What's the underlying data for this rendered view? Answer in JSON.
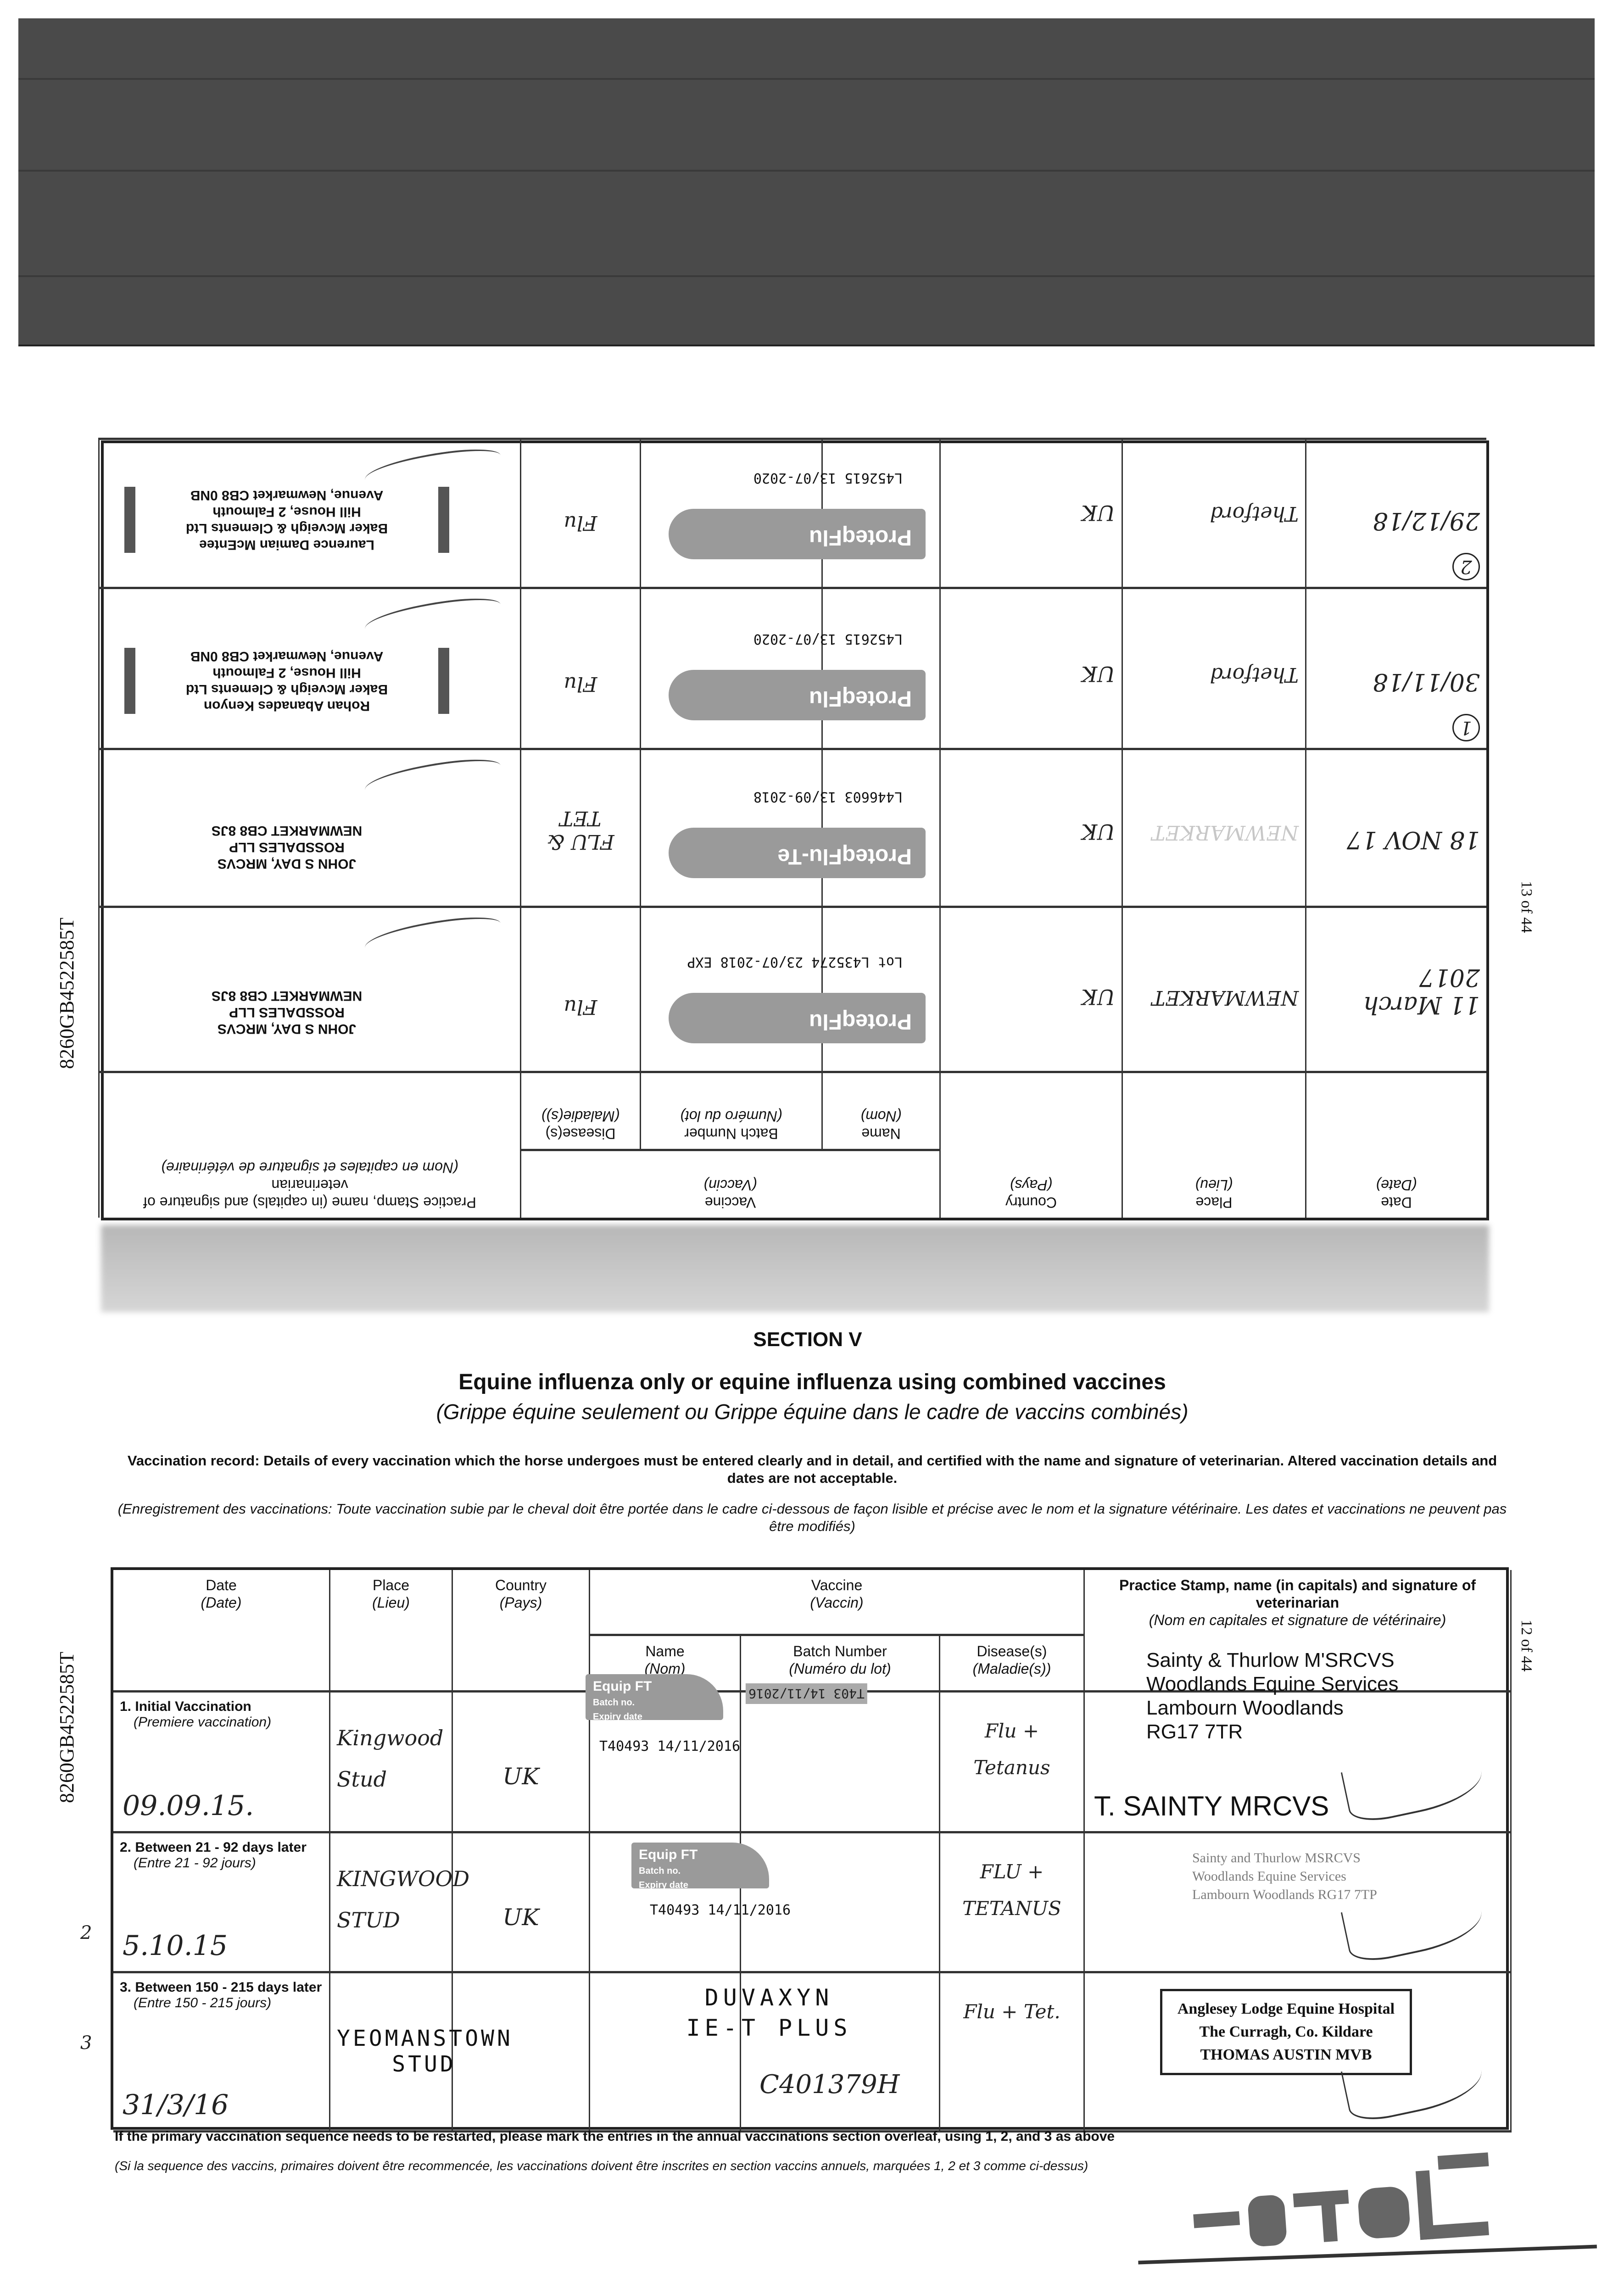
{
  "side_id": "8260GB4522585T",
  "upper": {
    "page": "13 of 44",
    "headers": {
      "date": "Date",
      "date_fr": "(Date)",
      "place": "Place",
      "place_fr": "(Lieu)",
      "country": "Country",
      "country_fr": "(Pays)",
      "vaccine": "Vaccine",
      "vaccine_fr": "(Vaccin)",
      "name": "Name",
      "name_fr": "(Nom)",
      "batch": "Batch Number",
      "batch_fr": "(Numéro du lot)",
      "disease": "Disease(s)",
      "disease_fr": "(Maladie(s))",
      "stamp": "Practice Stamp, name (in capitals) and signature of veterinarian",
      "stamp_fr": "(Nom en capitales et signature de vétérinaire)"
    },
    "rows": [
      {
        "date": "11 March 2017",
        "place": "NEWMARKET",
        "country": "UK",
        "vaccine": "ProteqFlu",
        "batch": "Lot L435274 23/07-2018 EXP",
        "disease": "Flu",
        "stamp": [
          "JOHN S DAY, MRCVS",
          "ROSSDALES LLP",
          "NEWMARKET CB8 8JS"
        ]
      },
      {
        "date": "18 NOV 17",
        "place": "NEWMARKET",
        "country": "UK",
        "vaccine": "ProteqFlu-Te",
        "batch": "L446603 13/09-2018",
        "disease": "FLU & TET",
        "stamp": [
          "JOHN S DAY, MRCVS",
          "ROSSDALES LLP",
          "NEWMARKET CB8 8JS"
        ]
      },
      {
        "mark": "1",
        "date": "30/11/18",
        "place": "Thetford",
        "country": "UK",
        "vaccine": "ProteqFlu",
        "batch": "L452615 13/07-2020",
        "disease": "Flu",
        "stamp": [
          "Rohan Abanades Kenyon",
          "Baker Mcveigh & Clements Ltd",
          "Hill House, 2 Falmouth",
          "Avenue, Newmarket CB8 0NB"
        ]
      },
      {
        "mark": "2",
        "date": "29/12/18",
        "place": "Thetford",
        "country": "UK",
        "vaccine": "ProteqFlu",
        "batch": "L452615 13/07-2020",
        "disease": "Flu",
        "stamp": [
          "Laurence Damian McEntee",
          "Baker Mcveigh & Clements Ltd",
          "Hill House, 2 Falmouth",
          "Avenue, Newmarket CB8 0NB"
        ]
      }
    ]
  },
  "section": {
    "heading": "SECTION V",
    "title": "Equine influenza only or equine influenza using combined vaccines",
    "title_fr": "(Grippe équine seulement ou Grippe équine dans le cadre de vaccins combinés)",
    "instruction": "Vaccination record: Details of every vaccination which the horse undergoes must be entered clearly and in detail, and certified with the name and signature of veterinarian. Altered vaccination details and dates are not acceptable.",
    "instruction_fr": "(Enregistrement des vaccinations: Toute vaccination subie par le cheval doit être portée dans le cadre ci-dessous de façon lisible et précise avec le nom et la signature vétérinaire. Les dates et vaccinations ne peuvent pas être modifiés)"
  },
  "lower": {
    "page": "12 of 44",
    "rows": [
      {
        "label": "1. Initial Vaccination",
        "label_fr": "(Premiere vaccination)",
        "margin": "",
        "date": "09.09.15.",
        "place": "Kingwood Stud",
        "country": "UK",
        "sticker": "Equip FT",
        "batch_no": "Batch no.",
        "expiry": "Expiry date",
        "batch": "T40493 14/11/2016",
        "batch2": "T403 14/11/2016",
        "disease": "Flu + Tetanus",
        "stamp": [
          "Sainty & Thurlow M'SRCVS",
          "Woodlands Equine Services",
          "Lambourn Woodlands",
          "RG17 7TR"
        ],
        "vet": "T. SAINTY MRCVS"
      },
      {
        "label": "2. Between 21 - 92 days later",
        "label_fr": "(Entre 21 - 92 jours)",
        "margin": "2",
        "date": "5.10.15",
        "place": "KINGWOOD STUD",
        "country": "UK",
        "sticker": "Equip FT",
        "batch_no": "Batch no.",
        "expiry": "Expiry date",
        "batch": "T40493 14/11/2016",
        "disease": "FLU + TETANUS",
        "stamp": [
          "Sainty and Thurlow MSRCVS",
          "Woodlands Equine Services",
          "Lambourn Woodlands RG17 7TP"
        ]
      },
      {
        "label": "3. Between 150 - 215 days later",
        "label_fr": "(Entre 150 - 215 jours)",
        "margin": "3",
        "date": "31/3/16",
        "place": "YEOMANSTOWN STUD",
        "country": "",
        "vaccine": "DUVAXYN IE-T PLUS",
        "batch": "C401379H",
        "disease": "Flu + Tet.",
        "stamp": [
          "Anglesey Lodge Equine Hospital",
          "The Curragh, Co. Kildare",
          "THOMAS AUSTIN MVB"
        ]
      }
    ]
  },
  "footer": {
    "note": "If the primary vaccination sequence needs to be restarted, please mark the entries in the annual vaccinations section overleaf, using 1, 2, and 3 as above",
    "note_fr": "(Si la sequence des vaccins, primaires doivent être recommencée, les vaccinations doivent être inscrites en section vaccins annuels, marquées 1, 2 et 3 comme ci-dessus)"
  }
}
